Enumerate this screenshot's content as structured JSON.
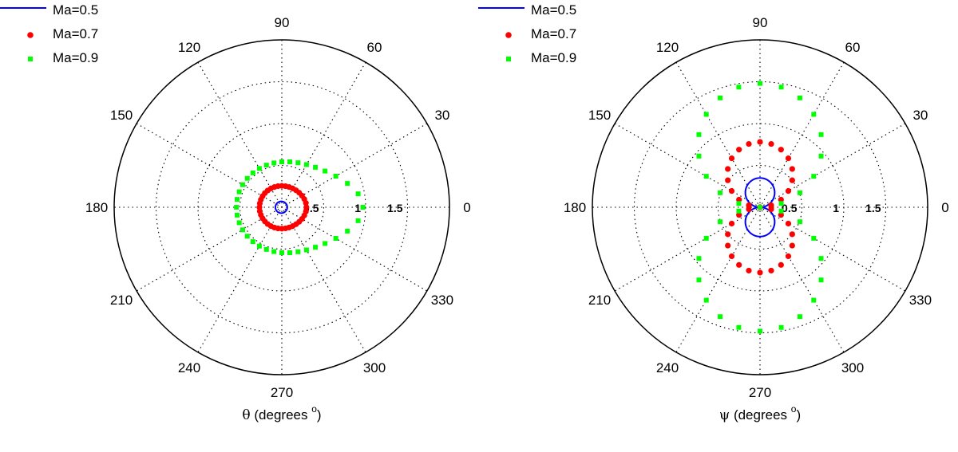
{
  "chart_data": [
    {
      "type": "scatter",
      "subtype": "polar",
      "theta_unit": "degrees",
      "r_ticks": [
        0.5,
        1,
        1.5
      ],
      "r_tick_labels": [
        "0.5",
        "1",
        "1.5"
      ],
      "r_max": 2,
      "angle_ticks": [
        0,
        30,
        60,
        90,
        120,
        150,
        180,
        210,
        240,
        270,
        300,
        330
      ],
      "angle_tick_labels": [
        "0",
        "30",
        "60",
        "90",
        "120",
        "150",
        "180",
        "210",
        "240",
        "270",
        "300",
        "330"
      ],
      "grid": true,
      "legend_position": "top-left",
      "xlabel": {
        "symbol": "θ",
        "text": " (degrees ",
        "sup": "o",
        "close": ")"
      },
      "series": [
        {
          "name": "Ma=0.5",
          "style": "line",
          "color": "#0000ff",
          "model": {
            "type": "dipole-cardioid",
            "Ma": 0.5,
            "scale": 0.9
          }
        },
        {
          "name": "Ma=0.7",
          "style": "circle-markers",
          "color": "#ff0000",
          "model": {
            "type": "dipole-cardioid",
            "Ma": 0.7,
            "scale": 3.3
          },
          "theta_step_deg": 10
        },
        {
          "name": "Ma=0.9",
          "style": "square-markers",
          "color": "#00ff00",
          "model": {
            "type": "dipole-cardioid",
            "Ma": 0.9,
            "scale": 7.0
          },
          "theta_step_deg": 10
        }
      ]
    },
    {
      "type": "scatter",
      "subtype": "polar",
      "theta_unit": "degrees",
      "r_ticks": [
        0.5,
        1,
        1.5
      ],
      "r_tick_labels": [
        "0.5",
        "1",
        "1.5"
      ],
      "r_max": 2,
      "angle_ticks": [
        0,
        30,
        60,
        90,
        120,
        150,
        180,
        210,
        240,
        270,
        300,
        330
      ],
      "angle_tick_labels": [
        "0",
        "30",
        "60",
        "90",
        "120",
        "150",
        "180",
        "210",
        "240",
        "270",
        "300",
        "330"
      ],
      "grid": true,
      "legend_position": "top-left",
      "xlabel": {
        "symbol": "ψ",
        "text": " (degrees ",
        "sup": "o",
        "close": ")"
      },
      "series": [
        {
          "name": "Ma=0.5",
          "style": "line",
          "color": "#0000ff",
          "model": {
            "type": "dipole-sin",
            "amplitude": 0.35
          }
        },
        {
          "name": "Ma=0.7",
          "style": "circle-markers",
          "color": "#ff0000",
          "model": {
            "type": "dipole-sin",
            "amplitude": 0.78
          },
          "theta_step_deg": 10
        },
        {
          "name": "Ma=0.9",
          "style": "square-markers",
          "color": "#00ff00",
          "model": {
            "type": "dipole-sin",
            "amplitude": 1.48
          },
          "theta_step_deg": 10
        }
      ]
    }
  ]
}
